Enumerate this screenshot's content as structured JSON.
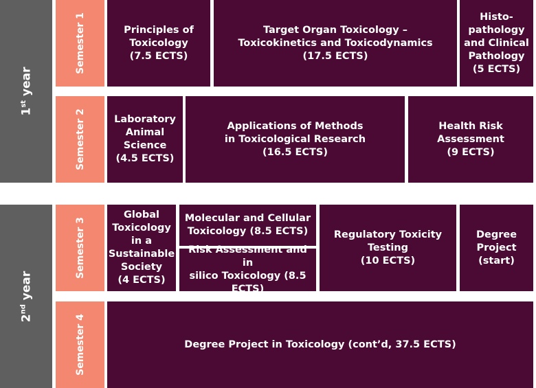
{
  "years": {
    "y1": {
      "num": "1",
      "sup": "st",
      "word": " year"
    },
    "y2": {
      "num": "2",
      "sup": "nd",
      "word": " year"
    }
  },
  "semesters": [
    "Semester 1",
    "Semester 2",
    "Semester 3",
    "Semester 4"
  ],
  "courses": {
    "principles": "Principles of\nToxicology\n(7.5 ECTS)",
    "target_organ": "Target Organ Toxicology –\nToxicokinetics and Toxicodynamics\n(17.5 ECTS)",
    "histopathology": "Histo-\npathology\nand Clinical\nPathology\n(5 ECTS)",
    "lab_animal": "Laboratory\nAnimal\nScience\n(4.5 ECTS)",
    "methods": "Applications of Methods\nin Toxicological Research\n(16.5 ECTS)",
    "health_risk": "Health Risk\nAssessment\n(9 ECTS)",
    "global_tox": "Global\nToxicology\nin a\nSustainable\nSociety\n(4 ECTS)",
    "molecular": "Molecular and Cellular\nToxicology (8.5 ECTS)",
    "risk_silico": "Risk Assessment and in\nsilico Toxicology (8.5\nECTS)",
    "regulatory": "Regulatory Toxicity\nTesting\n(10 ECTS)",
    "degree_start": "Degree\nProject\n(start)",
    "degree_cont": "Degree Project in Toxicology (cont’d, 37.5 ECTS)"
  },
  "colors": {
    "year_bg": "#5f5f5f",
    "semester_bg": "#f4876f",
    "course_bg": "#4a0a33",
    "text": "#ffffff"
  }
}
